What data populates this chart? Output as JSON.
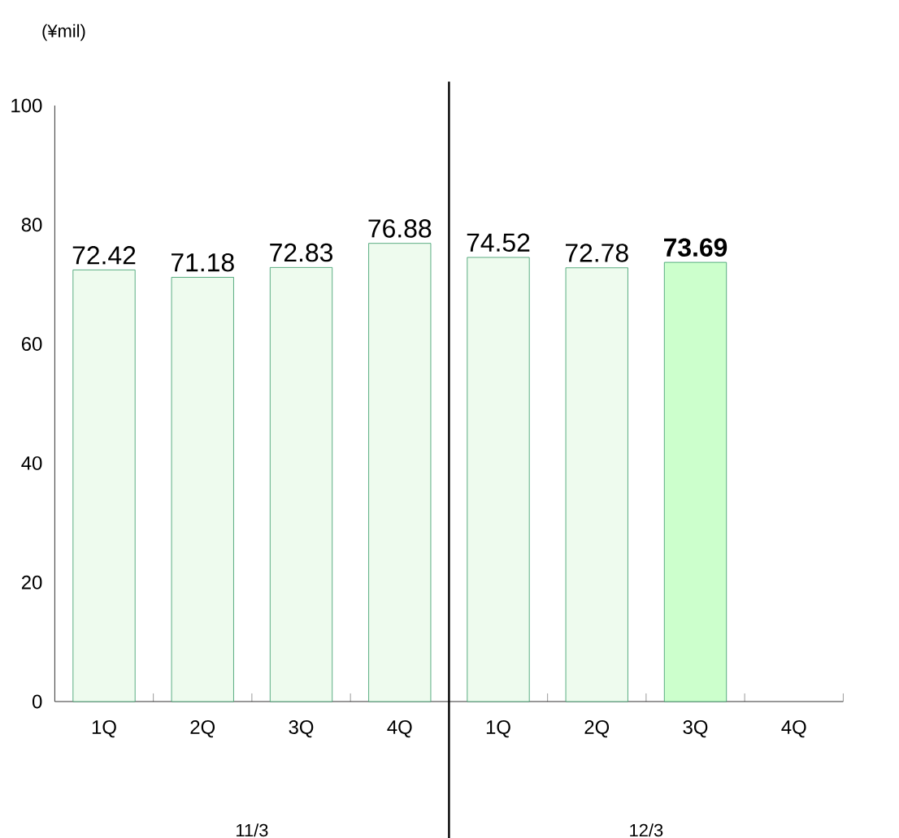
{
  "chart_data": {
    "type": "bar",
    "ylabel": "(¥mil)",
    "categories": [
      "1Q",
      "2Q",
      "3Q",
      "4Q",
      "1Q",
      "2Q",
      "3Q",
      "4Q"
    ],
    "values": [
      72.42,
      71.18,
      72.83,
      76.88,
      74.52,
      72.78,
      73.69,
      null
    ],
    "value_labels": [
      "72.42",
      "71.18",
      "72.83",
      "76.88",
      "74.52",
      "72.78",
      "**73.69**",
      null
    ],
    "colors": [
      "#eefbee",
      "#eefbee",
      "#eefbee",
      "#eefbee",
      "#eefbee",
      "#eefbee",
      "#ccffcc",
      "#ccffcc"
    ],
    "ylim": [
      0,
      100
    ],
    "yticks": [
      0,
      20,
      40,
      60,
      80,
      100
    ],
    "annotations": [
      "11/3",
      "12/3"
    ],
    "grid": false
  }
}
